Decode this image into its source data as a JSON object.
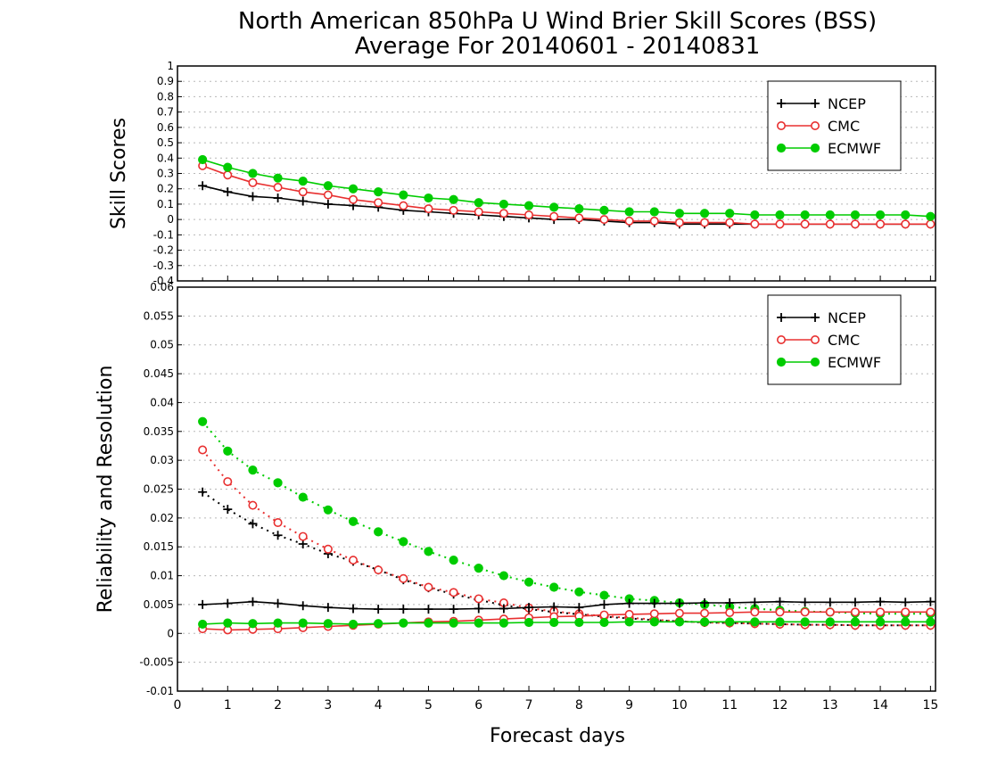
{
  "title_line1": "North American 850hPa U Wind Brier Skill Scores (BSS)",
  "title_line2": "Average For 20140601 - 20140831",
  "colors": {
    "NCEP": "#000000",
    "CMC": "#e83030",
    "ECMWF": "#00cc00",
    "grid": "#b8b8b8"
  },
  "chart_data": [
    {
      "type": "line",
      "panel": "top",
      "ylabel": "Skill Scores",
      "xlabel": "",
      "xlim": [
        0,
        15.1
      ],
      "ylim": [
        -0.4,
        1
      ],
      "yticks": [
        "-0.4",
        "-0.3",
        "-0.2",
        "-0.1",
        "0",
        "0.1",
        "0.2",
        "0.3",
        "0.4",
        "0.5",
        "0.6",
        "0.7",
        "0.8",
        "0.9",
        "1"
      ],
      "ytick_values": [
        -0.4,
        -0.3,
        -0.2,
        -0.1,
        0,
        0.1,
        0.2,
        0.3,
        0.4,
        0.5,
        0.6,
        0.7,
        0.8,
        0.9,
        1
      ],
      "grid": true,
      "legend_position": "top-right",
      "x": [
        0.5,
        1,
        1.5,
        2,
        2.5,
        3,
        3.5,
        4,
        4.5,
        5,
        5.5,
        6,
        6.5,
        7,
        7.5,
        8,
        8.5,
        9,
        9.5,
        10,
        10.5,
        11,
        11.5,
        12,
        12.5,
        13,
        13.5,
        14,
        14.5,
        15
      ],
      "series": [
        {
          "name": "NCEP",
          "marker": "plus",
          "style": "solid",
          "values": [
            0.22,
            0.18,
            0.15,
            0.14,
            0.12,
            0.1,
            0.09,
            0.08,
            0.06,
            0.05,
            0.04,
            0.03,
            0.02,
            0.01,
            0.0,
            0.0,
            -0.01,
            -0.02,
            -0.02,
            -0.03,
            -0.03,
            -0.03,
            -0.03,
            -0.03,
            -0.03,
            -0.03,
            -0.03,
            -0.03,
            -0.03,
            -0.03
          ]
        },
        {
          "name": "CMC",
          "marker": "open-circle",
          "style": "solid",
          "values": [
            0.35,
            0.29,
            0.24,
            0.21,
            0.18,
            0.16,
            0.13,
            0.11,
            0.09,
            0.07,
            0.06,
            0.05,
            0.04,
            0.03,
            0.02,
            0.01,
            0.0,
            -0.01,
            -0.01,
            -0.02,
            -0.02,
            -0.02,
            -0.03,
            -0.03,
            -0.03,
            -0.03,
            -0.03,
            -0.03,
            -0.03,
            -0.03
          ]
        },
        {
          "name": "ECMWF",
          "marker": "filled-circle",
          "style": "solid",
          "values": [
            0.39,
            0.34,
            0.3,
            0.27,
            0.25,
            0.22,
            0.2,
            0.18,
            0.16,
            0.14,
            0.13,
            0.11,
            0.1,
            0.09,
            0.08,
            0.07,
            0.06,
            0.05,
            0.05,
            0.04,
            0.04,
            0.04,
            0.03,
            0.03,
            0.03,
            0.03,
            0.03,
            0.03,
            0.03,
            0.02
          ]
        }
      ]
    },
    {
      "type": "line",
      "panel": "bottom",
      "ylabel": "Reliability and Resolution",
      "xlabel": "Forecast days",
      "xlim": [
        0,
        15.1
      ],
      "ylim": [
        -0.01,
        0.06
      ],
      "yticks": [
        "-0.01",
        "-0.005",
        "0",
        "0.005",
        "0.01",
        "0.015",
        "0.02",
        "0.025",
        "0.03",
        "0.035",
        "0.04",
        "0.045",
        "0.05",
        "0.055",
        "0.06"
      ],
      "ytick_values": [
        -0.01,
        -0.005,
        0,
        0.005,
        0.01,
        0.015,
        0.02,
        0.025,
        0.03,
        0.035,
        0.04,
        0.045,
        0.05,
        0.055,
        0.06
      ],
      "xticks": [
        "0",
        "1",
        "2",
        "3",
        "4",
        "5",
        "6",
        "7",
        "8",
        "9",
        "10",
        "11",
        "12",
        "13",
        "14",
        "15"
      ],
      "xtick_values": [
        0,
        1,
        2,
        3,
        4,
        5,
        6,
        7,
        8,
        9,
        10,
        11,
        12,
        13,
        14,
        15
      ],
      "grid": true,
      "legend_position": "top-right",
      "x": [
        0.5,
        1,
        1.5,
        2,
        2.5,
        3,
        3.5,
        4,
        4.5,
        5,
        5.5,
        6,
        6.5,
        7,
        7.5,
        8,
        8.5,
        9,
        9.5,
        10,
        10.5,
        11,
        11.5,
        12,
        12.5,
        13,
        13.5,
        14,
        14.5,
        15
      ],
      "series": [
        {
          "name": "NCEP",
          "marker": "plus",
          "style": "solid",
          "group": "reliability",
          "values": [
            0.005,
            0.0052,
            0.0055,
            0.0052,
            0.0048,
            0.0045,
            0.0043,
            0.0042,
            0.0042,
            0.0042,
            0.0042,
            0.0043,
            0.0043,
            0.0045,
            0.0046,
            0.0045,
            0.005,
            0.0052,
            0.0052,
            0.0052,
            0.0053,
            0.0053,
            0.0054,
            0.0055,
            0.0054,
            0.0054,
            0.0054,
            0.0055,
            0.0054,
            0.0055
          ]
        },
        {
          "name": "CMC",
          "marker": "open-circle",
          "style": "solid",
          "group": "reliability",
          "values": [
            0.0008,
            0.0006,
            0.0007,
            0.0008,
            0.001,
            0.0012,
            0.0014,
            0.0016,
            0.0018,
            0.002,
            0.0021,
            0.0023,
            0.0025,
            0.0027,
            0.0029,
            0.003,
            0.0032,
            0.0033,
            0.0034,
            0.0035,
            0.0035,
            0.0036,
            0.0037,
            0.0037,
            0.0037,
            0.0037,
            0.0037,
            0.0037,
            0.0037,
            0.0037
          ]
        },
        {
          "name": "ECMWF",
          "marker": "filled-circle",
          "style": "solid",
          "group": "reliability",
          "values": [
            0.0016,
            0.0018,
            0.0017,
            0.0018,
            0.0018,
            0.0017,
            0.0016,
            0.0017,
            0.0018,
            0.0018,
            0.0018,
            0.0018,
            0.0018,
            0.0019,
            0.0019,
            0.0019,
            0.0019,
            0.002,
            0.002,
            0.002,
            0.002,
            0.002,
            0.002,
            0.002,
            0.002,
            0.002,
            0.002,
            0.002,
            0.002,
            0.002
          ]
        },
        {
          "marker": "plus",
          "style": "dotted",
          "group": "resolution",
          "color_key": "NCEP",
          "values": [
            0.0245,
            0.0215,
            0.019,
            0.017,
            0.0155,
            0.0138,
            0.0125,
            0.011,
            0.0093,
            0.0079,
            0.0068,
            0.0058,
            0.0049,
            0.0042,
            0.0037,
            0.0033,
            0.0029,
            0.0026,
            0.0023,
            0.0021,
            0.0019,
            0.0018,
            0.0017,
            0.0016,
            0.0015,
            0.0015,
            0.0014,
            0.0014,
            0.0014,
            0.0014
          ]
        },
        {
          "marker": "open-circle",
          "style": "dotted",
          "group": "resolution",
          "color_key": "CMC",
          "values": [
            0.0318,
            0.0263,
            0.0222,
            0.0192,
            0.0168,
            0.0146,
            0.0127,
            0.011,
            0.0095,
            0.008,
            0.0071,
            0.006,
            0.0053,
            0.0044,
            0.0038,
            0.0034,
            0.003,
            0.0027,
            0.0024,
            0.0021,
            0.0019,
            0.0018,
            0.0017,
            0.0016,
            0.0015,
            0.0015,
            0.0014,
            0.0014,
            0.0014,
            0.0014
          ]
        },
        {
          "marker": "filled-circle",
          "style": "dotted",
          "group": "resolution",
          "color_key": "ECMWF",
          "values": [
            0.0367,
            0.0316,
            0.0283,
            0.0261,
            0.0236,
            0.0214,
            0.0194,
            0.0176,
            0.0159,
            0.0142,
            0.0127,
            0.0113,
            0.01,
            0.0089,
            0.008,
            0.0072,
            0.0066,
            0.006,
            0.0057,
            0.0053,
            0.005,
            0.0046,
            0.0043,
            0.004,
            0.0038,
            0.0037,
            0.0035,
            0.0034,
            0.0034,
            0.0034
          ]
        }
      ]
    }
  ]
}
